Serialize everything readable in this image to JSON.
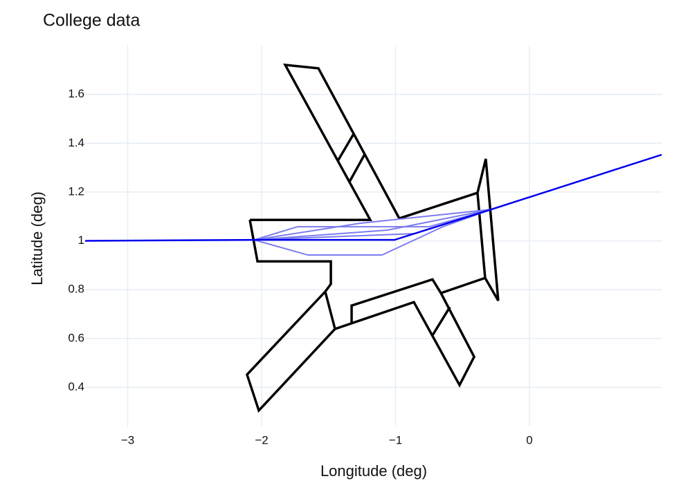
{
  "chart_data": {
    "type": "line",
    "title": "College data",
    "x_label": "Longitude (deg)",
    "y_label": "Latitude (deg)",
    "xlim": [
      -3.318,
      0.987
    ],
    "ylim": [
      0.24,
      1.8
    ],
    "xticks": [
      {
        "value": -3,
        "label": "−3"
      },
      {
        "value": -2,
        "label": "−2"
      },
      {
        "value": -1,
        "label": "−1"
      },
      0
    ],
    "yticks": [
      0.4,
      0.6,
      0.8,
      1,
      1.2,
      1.4,
      1.6
    ],
    "grid": true,
    "series": [
      {
        "color": "#000000",
        "line_width": 3.5,
        "x": [
          -2.088,
          -2.031,
          -1.483,
          -1.483,
          -1.525,
          -2.109,
          -2.021,
          -1.452,
          -0.863,
          -0.522,
          -0.413,
          -0.661,
          -0.724,
          -1.328,
          -1.328,
          null,
          -1.525,
          -1.452,
          null,
          -0.661,
          -0.331,
          -0.233,
          -0.326,
          -0.388,
          -0.972,
          -1.576,
          -1.824,
          -1.189,
          -2.088,
          null,
          -0.388,
          -0.331,
          null,
          -1.432,
          -1.313,
          null,
          -1.344,
          -1.23,
          null,
          -0.724,
          -0.594
        ],
        "y": [
          1.086,
          0.916,
          0.916,
          0.823,
          0.792,
          0.452,
          0.305,
          0.639,
          0.749,
          0.409,
          0.525,
          0.786,
          0.842,
          0.735,
          0.661,
          null,
          0.792,
          0.639,
          null,
          0.786,
          0.848,
          0.755,
          1.336,
          1.197,
          1.092,
          1.707,
          1.721,
          1.086,
          1.086,
          null,
          1.197,
          0.848,
          null,
          1.327,
          1.438,
          null,
          1.242,
          1.355,
          null,
          0.613,
          0.729
        ]
      },
      {
        "color": "#7b7bf0",
        "line_width": 2,
        "x": [
          -2.057,
          -1.731,
          -0.749,
          -0.284
        ],
        "y": [
          1.004,
          1.058,
          1.058,
          1.129
        ]
      },
      {
        "color": "#7b7bf0",
        "line_width": 2,
        "x": [
          -2.057,
          -1.654,
          -1.101,
          -0.646,
          -0.284
        ],
        "y": [
          1.004,
          0.942,
          0.942,
          1.058,
          1.129
        ]
      },
      {
        "color": "#7b7bf0",
        "line_width": 2,
        "x": [
          -2.057,
          -1.266,
          -0.284
        ],
        "y": [
          1.004,
          1.072,
          1.129
        ]
      },
      {
        "color": "#7b7bf0",
        "line_width": 2,
        "x": [
          -2.057,
          -0.853,
          -0.284
        ],
        "y": [
          1.004,
          1.03,
          1.129
        ]
      },
      {
        "color": "#7b7bf0",
        "line_width": 2,
        "x": [
          -2.057,
          -1.06,
          -0.284
        ],
        "y": [
          1.004,
          1.044,
          1.129
        ]
      },
      {
        "color": "#0000ee",
        "line_width": 2.5,
        "x": [
          -3.318,
          -2.057,
          -1.008,
          -0.284,
          0.987
        ],
        "y": [
          1.0,
          1.004,
          1.004,
          1.129,
          1.353
        ]
      }
    ]
  }
}
